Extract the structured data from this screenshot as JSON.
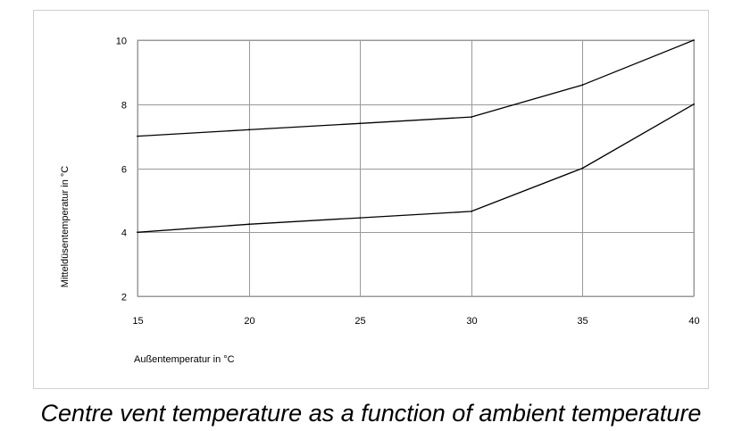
{
  "caption": "Centre vent temperature as a function of ambient temperature",
  "chart_data": {
    "type": "line",
    "title": "",
    "xlabel": "Außentemperatur in °C",
    "ylabel": "Mitteldüsentemperatur in °C",
    "xlim": [
      15,
      40
    ],
    "ylim": [
      2,
      10
    ],
    "xticks": [
      15,
      20,
      25,
      30,
      35,
      40
    ],
    "yticks": [
      2,
      4,
      6,
      8,
      10
    ],
    "grid": true,
    "legend": "none",
    "line_color": "#000000",
    "grid_color": "#999999",
    "series": [
      {
        "x": [
          15,
          20,
          25,
          30,
          35,
          40
        ],
        "values": [
          7.0,
          7.2,
          7.4,
          7.6,
          8.6,
          10.0
        ]
      },
      {
        "x": [
          15,
          20,
          25,
          30,
          35,
          40
        ],
        "values": [
          4.0,
          4.25,
          4.45,
          4.65,
          6.0,
          8.0
        ]
      }
    ]
  }
}
